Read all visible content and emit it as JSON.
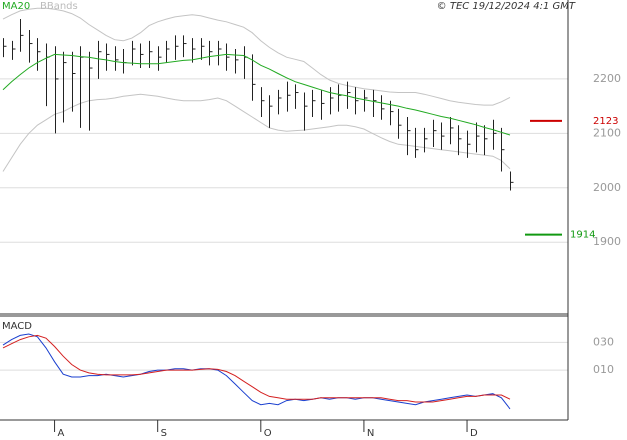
{
  "chart_data": [
    {
      "type": "ohlc",
      "source": "© TEC 19/12/2024 4:1 GMT",
      "categories": [
        null,
        null,
        null,
        null,
        null,
        null,
        "A",
        null,
        null,
        null,
        null,
        null,
        null,
        null,
        null,
        null,
        null,
        null,
        "S",
        null,
        null,
        null,
        null,
        null,
        null,
        null,
        null,
        null,
        null,
        null,
        "O",
        null,
        null,
        null,
        null,
        null,
        null,
        null,
        null,
        null,
        null,
        null,
        "N",
        null,
        null,
        null,
        null,
        null,
        null,
        null,
        null,
        null,
        null,
        null,
        "D",
        null,
        null,
        null,
        null,
        null
      ],
      "high": [
        2275,
        2270,
        2310,
        2290,
        2275,
        2265,
        2260,
        2250,
        2250,
        2260,
        2250,
        2270,
        2265,
        2260,
        2255,
        2270,
        2265,
        2270,
        2260,
        2270,
        2280,
        2280,
        2275,
        2275,
        2270,
        2270,
        2265,
        2255,
        2260,
        2245,
        2185,
        2170,
        2180,
        2195,
        2190,
        2175,
        2180,
        2180,
        2185,
        2190,
        2195,
        2185,
        2180,
        2180,
        2170,
        2160,
        2145,
        2130,
        2110,
        2110,
        2125,
        2120,
        2130,
        2115,
        2105,
        2120,
        2115,
        2125,
        2110,
        2030
      ],
      "low": [
        2240,
        2235,
        2250,
        2230,
        2215,
        2150,
        2100,
        2120,
        2140,
        2110,
        2105,
        2200,
        2215,
        2215,
        2210,
        2225,
        2220,
        2220,
        2215,
        2230,
        2235,
        2240,
        2230,
        2235,
        2225,
        2225,
        2215,
        2210,
        2200,
        2160,
        2130,
        2110,
        2135,
        2140,
        2145,
        2105,
        2130,
        2125,
        2135,
        2140,
        2145,
        2135,
        2140,
        2130,
        2125,
        2115,
        2090,
        2060,
        2055,
        2065,
        2075,
        2070,
        2080,
        2060,
        2055,
        2065,
        2060,
        2070,
        2030,
        1995
      ],
      "close": [
        2260,
        2255,
        2280,
        2265,
        2250,
        2240,
        2200,
        2230,
        2210,
        2240,
        2220,
        2250,
        2245,
        2235,
        2230,
        2255,
        2245,
        2250,
        2240,
        2255,
        2260,
        2265,
        2255,
        2260,
        2250,
        2255,
        2240,
        2235,
        2240,
        2190,
        2160,
        2150,
        2165,
        2170,
        2175,
        2150,
        2160,
        2155,
        2165,
        2170,
        2175,
        2160,
        2165,
        2160,
        2145,
        2140,
        2115,
        2105,
        2070,
        2090,
        2105,
        2095,
        2110,
        2090,
        2080,
        2095,
        2090,
        2100,
        2070,
        2010
      ],
      "bar_color": "#222222",
      "series": [
        {
          "name": "MA20",
          "color": "#22aa22",
          "values": [
            2180,
            2195,
            2208,
            2220,
            2230,
            2238,
            2245,
            2244,
            2243,
            2241,
            2240,
            2237,
            2235,
            2232,
            2230,
            2229,
            2228,
            2228,
            2228,
            2230,
            2232,
            2234,
            2235,
            2238,
            2241,
            2243,
            2245,
            2244,
            2243,
            2235,
            2225,
            2218,
            2210,
            2202,
            2195,
            2190,
            2185,
            2180,
            2175,
            2172,
            2169,
            2165,
            2162,
            2159,
            2156,
            2153,
            2150,
            2146,
            2143,
            2139,
            2135,
            2131,
            2128,
            2124,
            2120,
            2116,
            2111,
            2107,
            2102,
            2097
          ]
        },
        {
          "name": "BBands",
          "color": "#c4c4c4",
          "upper": [
            2310,
            2318,
            2325,
            2328,
            2330,
            2330,
            2328,
            2325,
            2320,
            2312,
            2300,
            2290,
            2280,
            2272,
            2270,
            2275,
            2285,
            2298,
            2305,
            2310,
            2314,
            2316,
            2318,
            2316,
            2312,
            2308,
            2305,
            2300,
            2295,
            2285,
            2270,
            2258,
            2248,
            2240,
            2236,
            2232,
            2220,
            2208,
            2198,
            2192,
            2188,
            2185,
            2182,
            2180,
            2178,
            2176,
            2175,
            2175,
            2175,
            2172,
            2168,
            2164,
            2160,
            2157,
            2155,
            2153,
            2152,
            2152,
            2158,
            2166
          ],
          "lower": [
            2030,
            2055,
            2080,
            2100,
            2115,
            2125,
            2135,
            2140,
            2148,
            2155,
            2160,
            2162,
            2163,
            2165,
            2168,
            2170,
            2172,
            2170,
            2168,
            2165,
            2162,
            2160,
            2160,
            2160,
            2162,
            2165,
            2160,
            2150,
            2140,
            2130,
            2120,
            2110,
            2106,
            2104,
            2105,
            2106,
            2108,
            2110,
            2112,
            2115,
            2115,
            2112,
            2108,
            2100,
            2092,
            2085,
            2080,
            2078,
            2076,
            2074,
            2072,
            2070,
            2068,
            2066,
            2064,
            2062,
            2060,
            2058,
            2050,
            2035
          ]
        }
      ],
      "annotations": [
        {
          "value": 2123,
          "color": "#cc0000"
        },
        {
          "value": 1914,
          "color": "#119911"
        }
      ],
      "ylim": [
        1770,
        2345
      ],
      "yticks": [
        1900,
        2000,
        2100,
        2200
      ],
      "grid": true
    },
    {
      "type": "line",
      "title": "MACD",
      "series": [
        {
          "color": "#1a3fcf",
          "values": [
            0.28,
            0.32,
            0.35,
            0.36,
            0.34,
            0.26,
            0.16,
            0.07,
            0.05,
            0.05,
            0.06,
            0.06,
            0.07,
            0.06,
            0.05,
            0.06,
            0.07,
            0.09,
            0.1,
            0.1,
            0.11,
            0.11,
            0.1,
            0.11,
            0.11,
            0.1,
            0.06,
            0.0,
            -0.06,
            -0.12,
            -0.15,
            -0.14,
            -0.15,
            -0.12,
            -0.11,
            -0.12,
            -0.11,
            -0.1,
            -0.11,
            -0.1,
            -0.1,
            -0.11,
            -0.1,
            -0.1,
            -0.11,
            -0.12,
            -0.13,
            -0.14,
            -0.15,
            -0.13,
            -0.12,
            -0.11,
            -0.1,
            -0.09,
            -0.08,
            -0.09,
            -0.08,
            -0.07,
            -0.1,
            -0.18
          ]
        },
        {
          "color": "#d42020",
          "values": [
            0.26,
            0.29,
            0.32,
            0.34,
            0.35,
            0.33,
            0.27,
            0.2,
            0.14,
            0.1,
            0.08,
            0.07,
            0.065,
            0.065,
            0.065,
            0.065,
            0.07,
            0.08,
            0.09,
            0.1,
            0.1,
            0.1,
            0.1,
            0.105,
            0.11,
            0.105,
            0.09,
            0.06,
            0.02,
            -0.02,
            -0.06,
            -0.09,
            -0.1,
            -0.11,
            -0.11,
            -0.11,
            -0.11,
            -0.1,
            -0.1,
            -0.1,
            -0.1,
            -0.1,
            -0.1,
            -0.1,
            -0.1,
            -0.11,
            -0.12,
            -0.12,
            -0.13,
            -0.13,
            -0.13,
            -0.12,
            -0.11,
            -0.1,
            -0.09,
            -0.09,
            -0.08,
            -0.08,
            -0.08,
            -0.11
          ]
        }
      ],
      "ylim": [
        -0.26,
        0.49
      ],
      "yticks": [
        {
          "value": 0.3,
          "label": "030"
        },
        {
          "value": 0.1,
          "label": "010"
        }
      ],
      "grid": true
    }
  ]
}
